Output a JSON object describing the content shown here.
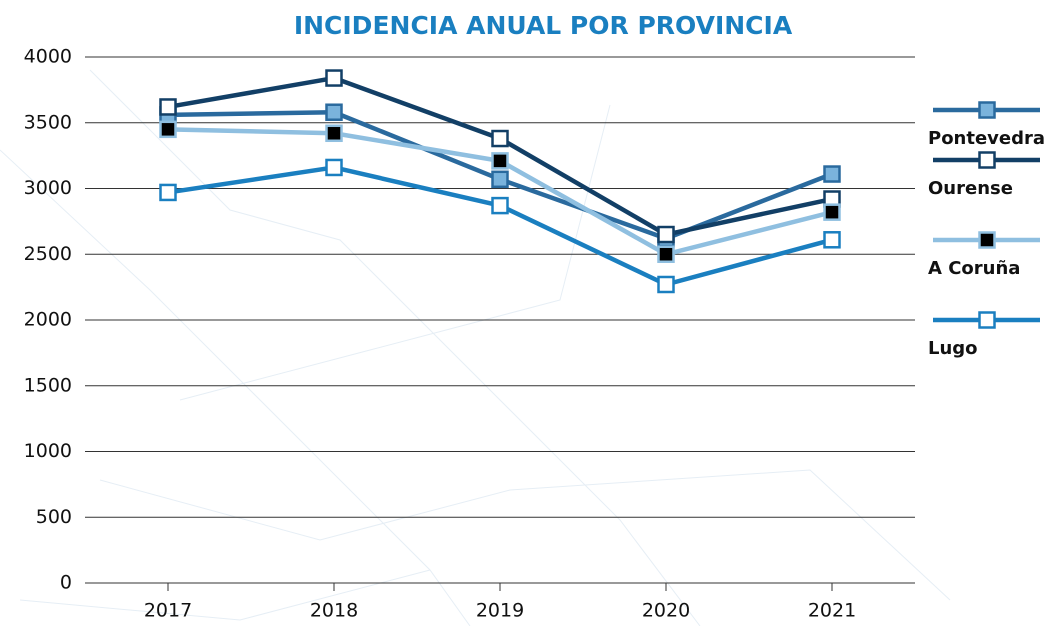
{
  "chart_data": {
    "type": "line",
    "title": "INCIDENCIA ANUAL POR PROVINCIA",
    "categories": [
      "2017",
      "2018",
      "2019",
      "2020",
      "2021"
    ],
    "series": [
      {
        "name": "Pontevedra",
        "color": "#2a6a9e",
        "marker_fill": "#7ab3dc",
        "values": [
          3560,
          3580,
          3070,
          2620,
          3110
        ]
      },
      {
        "name": "Ourense",
        "color": "#123f66",
        "marker_fill": "#ffffff",
        "values": [
          3620,
          3840,
          3380,
          2650,
          2920
        ]
      },
      {
        "name": "A Coruña",
        "color": "#8fbfe0",
        "marker_fill": "#000000",
        "values": [
          3450,
          3420,
          3210,
          2500,
          2820
        ]
      },
      {
        "name": "Lugo",
        "color": "#1a7fc0",
        "marker_fill": "#ffffff",
        "values": [
          2970,
          3160,
          2870,
          2270,
          2610
        ]
      }
    ],
    "ylim": [
      0,
      4000
    ],
    "yticks": [
      0,
      500,
      1000,
      1500,
      2000,
      2500,
      3000,
      3500,
      4000
    ],
    "grid": true,
    "legend": "right"
  }
}
